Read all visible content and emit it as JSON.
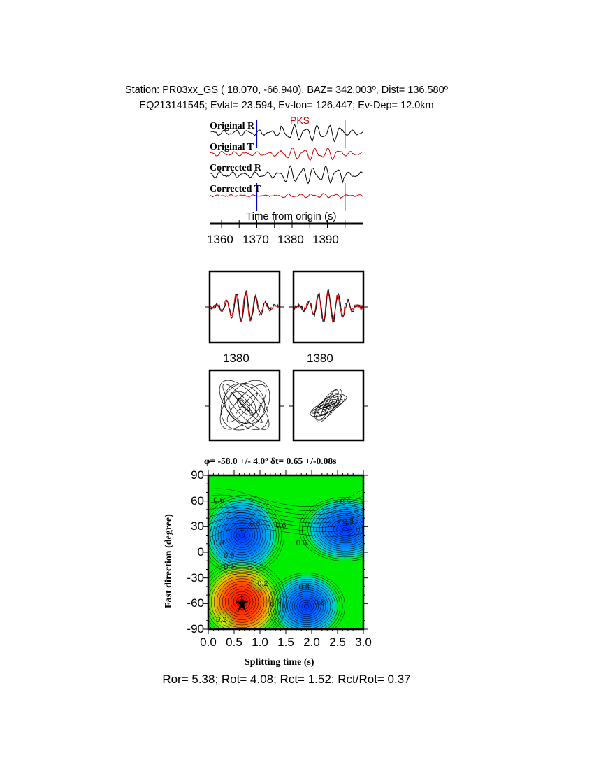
{
  "header": {
    "line1": "Station: PR03xx_GS (  18.070,  -66.940), BAZ=  342.003º, Dist=  136.580º",
    "line2": "EQ213141545; Evlat=  23.594, Ev-lon= 126.447; Ev-Dep= 12.0km"
  },
  "traces": {
    "phase_label": "PKS",
    "labels": [
      "Original R",
      "Original T",
      "Corrected R",
      "Corrected T"
    ],
    "xlabel": "Time from origin (s)",
    "ticks": [
      "1360",
      "1370",
      "1380",
      "1390"
    ],
    "window_start": 1370,
    "window_end": 1395,
    "colors": {
      "radial": "#000000",
      "transverse": "#cc0000",
      "window": "#0000cc"
    }
  },
  "waveform_panels": {
    "tick_labels": [
      "1380",
      "1380"
    ]
  },
  "chart_data": {
    "type": "heatmap",
    "title": "φ= -58.0 +/- 4.0º δt= 0.65 +/-0.08s",
    "xlabel": "Splitting time (s)",
    "ylabel": "Fast direction (degree)",
    "xlim": [
      0,
      3
    ],
    "ylim": [
      -90,
      90
    ],
    "xticks": [
      "0.0",
      "0.5",
      "1.0",
      "1.5",
      "2.0",
      "2.5",
      "3.0"
    ],
    "yticks": [
      "90",
      "60",
      "30",
      "0",
      "-30",
      "-60",
      "-90"
    ],
    "contour_labels": [
      "0.6",
      "0.8",
      "0.6",
      "0.6",
      "0.6",
      "0.8",
      "0.8",
      "0.6",
      "0.4",
      "0.2",
      "0.4",
      "0.6",
      "0.8",
      "0.2"
    ],
    "best_fit": {
      "dt": 0.65,
      "phi": -58.0
    },
    "minimum": {
      "dt": 0.65,
      "phi": -58
    },
    "maxima": [
      {
        "dt": 0.65,
        "phi": 20
      },
      {
        "dt": 2.65,
        "phi": 27
      },
      {
        "dt": 1.9,
        "phi": -63
      }
    ],
    "colorscale": [
      "#e00000",
      "#ffff00",
      "#00ee00",
      "#00ffff",
      "#0040ff"
    ]
  },
  "footer": {
    "ratios": "Ror= 5.38; Rot= 4.08; Rct= 1.52; Rct/Rot= 0.37"
  }
}
